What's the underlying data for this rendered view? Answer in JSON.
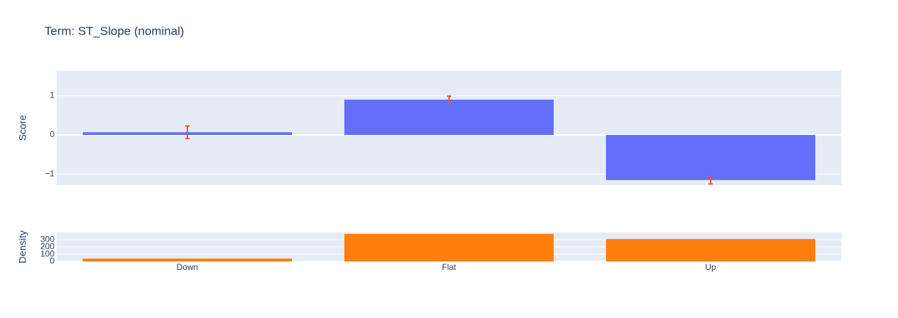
{
  "chart_data": [
    {
      "type": "bar",
      "title": "Term: ST_Slope (nominal)",
      "y_label": "Score",
      "values": [
        0.07,
        0.9,
        -1.15
      ],
      "errors": [
        0.16,
        0.09,
        0.1
      ],
      "color": "#636efa",
      "error_color": "#ef553b",
      "ylim": [
        -1.28,
        1.64
      ],
      "yticks": [
        {
          "value": -1,
          "label": "−1"
        },
        0,
        1
      ],
      "grid": true
    },
    {
      "type": "bar",
      "y_label": "Density",
      "categories": [
        "Down",
        "Flat",
        "Up"
      ],
      "values": [
        40,
        380,
        310
      ],
      "color": "#ff7f0e",
      "ylim": [
        0,
        400
      ],
      "yticks": [
        0,
        100,
        200,
        300
      ],
      "grid": true
    }
  ]
}
